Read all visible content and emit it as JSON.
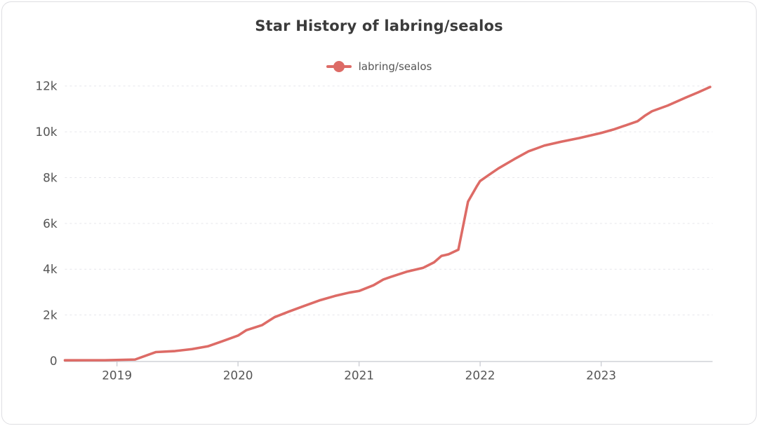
{
  "colors": {
    "line": "#dd6b66",
    "grid": "#e6e6eb",
    "axis": "#ccced4",
    "axis_text": "#555555",
    "title_text": "#3b3b3b",
    "card_border": "#dedee2",
    "background": "#ffffff"
  },
  "chart_data": {
    "type": "line",
    "title": "Star History of labring/sealos",
    "xlabel": "",
    "ylabel": "",
    "grid": "horizontal dashed",
    "legend_position": "top-center",
    "x_range": [
      2018.57,
      2023.92
    ],
    "y_range": [
      0,
      12000
    ],
    "x_ticks": [
      {
        "v": 2019,
        "label": "2019"
      },
      {
        "v": 2020,
        "label": "2020"
      },
      {
        "v": 2021,
        "label": "2021"
      },
      {
        "v": 2022,
        "label": "2022"
      },
      {
        "v": 2023,
        "label": "2023"
      }
    ],
    "y_ticks": [
      {
        "v": 0,
        "label": "0"
      },
      {
        "v": 2000,
        "label": "2k"
      },
      {
        "v": 4000,
        "label": "4k"
      },
      {
        "v": 6000,
        "label": "6k"
      },
      {
        "v": 8000,
        "label": "8k"
      },
      {
        "v": 10000,
        "label": "10k"
      },
      {
        "v": 12000,
        "label": "12k"
      }
    ],
    "series": [
      {
        "name": "labring/sealos",
        "color": "#dd6b66",
        "points": [
          [
            2018.57,
            20
          ],
          [
            2018.9,
            25
          ],
          [
            2019.15,
            55
          ],
          [
            2019.32,
            380
          ],
          [
            2019.48,
            425
          ],
          [
            2019.62,
            510
          ],
          [
            2019.75,
            630
          ],
          [
            2019.87,
            850
          ],
          [
            2020.0,
            1100
          ],
          [
            2020.07,
            1340
          ],
          [
            2020.2,
            1560
          ],
          [
            2020.3,
            1900
          ],
          [
            2020.42,
            2150
          ],
          [
            2020.55,
            2400
          ],
          [
            2020.68,
            2650
          ],
          [
            2020.8,
            2830
          ],
          [
            2020.92,
            2980
          ],
          [
            2021.0,
            3050
          ],
          [
            2021.12,
            3300
          ],
          [
            2021.2,
            3550
          ],
          [
            2021.26,
            3660
          ],
          [
            2021.4,
            3900
          ],
          [
            2021.53,
            4060
          ],
          [
            2021.62,
            4300
          ],
          [
            2021.68,
            4580
          ],
          [
            2021.74,
            4650
          ],
          [
            2021.82,
            4850
          ],
          [
            2021.9,
            6950
          ],
          [
            2021.97,
            7600
          ],
          [
            2022.0,
            7850
          ],
          [
            2022.08,
            8150
          ],
          [
            2022.15,
            8400
          ],
          [
            2022.28,
            8800
          ],
          [
            2022.4,
            9150
          ],
          [
            2022.53,
            9400
          ],
          [
            2022.67,
            9570
          ],
          [
            2022.82,
            9730
          ],
          [
            2023.0,
            9950
          ],
          [
            2023.1,
            10100
          ],
          [
            2023.2,
            10280
          ],
          [
            2023.3,
            10460
          ],
          [
            2023.36,
            10700
          ],
          [
            2023.42,
            10900
          ],
          [
            2023.55,
            11150
          ],
          [
            2023.7,
            11500
          ],
          [
            2023.8,
            11720
          ],
          [
            2023.9,
            11960
          ]
        ]
      }
    ]
  }
}
